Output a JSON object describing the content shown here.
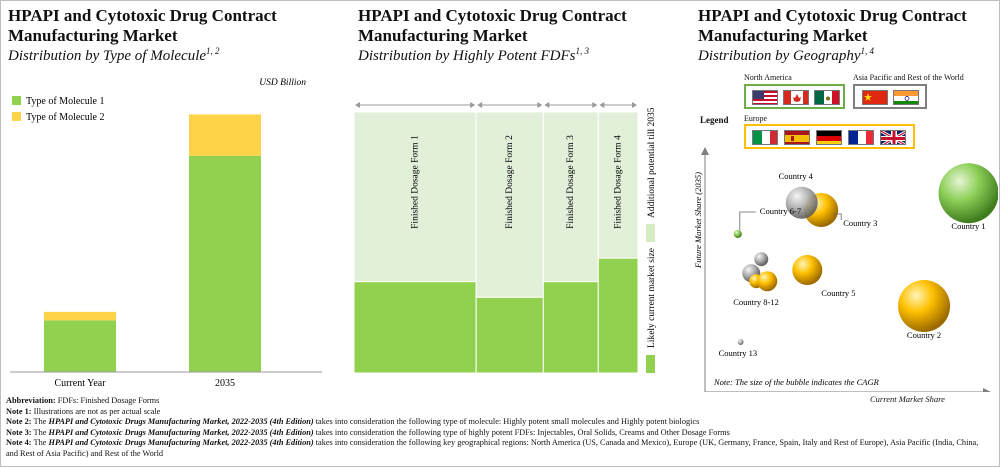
{
  "panels": [
    {
      "title": "HPAPI and Cytotoxic Drug Contract Manufacturing Market",
      "subtitle": "Distribution by Type of Molecule",
      "subtitle_sup": "1, 2"
    },
    {
      "title": "HPAPI and Cytotoxic Drug Contract Manufacturing Market",
      "subtitle": "Distribution by Highly Potent FDFs",
      "subtitle_sup": "1, 3"
    },
    {
      "title": "HPAPI and Cytotoxic Drug Contract Manufacturing Market",
      "subtitle": "Distribution by Geography",
      "subtitle_sup": "1, 4"
    }
  ],
  "chart_data": [
    {
      "type": "bar",
      "stacked": true,
      "unit_label": "USD Billion",
      "categories": [
        "Current Year",
        "2035"
      ],
      "series": [
        {
          "name": "Type of Molecule 1",
          "values": [
            55,
            230
          ],
          "color": "#92d050"
        },
        {
          "name": "Type of Molecule 2",
          "values": [
            9,
            44
          ],
          "color": "#ffd347"
        }
      ],
      "ylim": [
        0,
        300
      ],
      "legend_position": "top-left",
      "grid": false
    },
    {
      "type": "bar",
      "stacked": true,
      "variable_width": true,
      "categories": [
        "Finished Dosage Form 1",
        "Finished Dosage Form 2",
        "Finished Dosage Form 3",
        "Finished Dosage Form 4"
      ],
      "widths": [
        0.4,
        0.22,
        0.18,
        0.13
      ],
      "series": [
        {
          "name": "Likely current market size",
          "values": [
            35,
            29,
            35,
            44
          ],
          "color": "#92d050"
        },
        {
          "name": "Additional potential till 2035",
          "values": [
            65,
            71,
            65,
            56
          ],
          "color": "#e2f0d9"
        }
      ],
      "ylim": [
        0,
        100
      ],
      "legend_position": "right",
      "grid": false
    },
    {
      "type": "scatter",
      "bubble": true,
      "xlabel": "Current Market Share",
      "ylabel": "Future Market Share (2035)",
      "note": "Note: The size of the bubble indicates the CAGR",
      "points": [
        {
          "label": "Country 1",
          "x": 93,
          "y": 82,
          "size": 30,
          "region": "North America",
          "color": "#70ad47"
        },
        {
          "label": "Country 2",
          "x": 77,
          "y": 35,
          "size": 26,
          "region": "Europe",
          "color": "#ffc000"
        },
        {
          "label": "Country 3",
          "x": 40,
          "y": 75,
          "size": 17,
          "region": "Europe",
          "color": "#ffc000"
        },
        {
          "label": "Country 4",
          "x": 33,
          "y": 78,
          "size": 16,
          "region": "Asia Pacific and Rest of the World",
          "color": "#a5a5a5"
        },
        {
          "label": "Country 5",
          "x": 35,
          "y": 50,
          "size": 15,
          "region": "Europe",
          "color": "#ffc000"
        },
        {
          "label": "Country 6-7",
          "x": 10,
          "y": 65,
          "size": 4,
          "region": "North America",
          "color": "#70ad47"
        },
        {
          "label": "Country 8-12",
          "x": 17,
          "y": 47,
          "size": 10,
          "region": "Europe",
          "color": "#ffc000"
        },
        {
          "label": "Country 13",
          "x": 11,
          "y": 20,
          "size": 3,
          "region": "Asia Pacific and Rest of the World",
          "color": "#a5a5a5"
        }
      ],
      "grid": false
    }
  ],
  "legend": {
    "title": "Legend",
    "groups": [
      {
        "name": "North America",
        "flags": [
          "us-flag",
          "canada-flag",
          "mexico-flag"
        ],
        "border": "#70ad47"
      },
      {
        "name": "Asia Pacific and Rest of the World",
        "flags": [
          "china-flag",
          "india-flag"
        ],
        "border": "#7f7f7f"
      },
      {
        "name": "Europe",
        "flags": [
          "italy-flag",
          "spain-flag",
          "germany-flag",
          "france-flag",
          "uk-flag"
        ],
        "border": "#ffc000"
      }
    ]
  },
  "notes": [
    {
      "label": "Abbreviation:",
      "text": " FDFs: Finished Dosage Forms"
    },
    {
      "label": "Note 1:",
      "text": " Illustrations are not as per actual scale"
    },
    {
      "label": "Note 2:",
      "text_before": " The ",
      "title": "HPAPI and Cytotoxic Drugs Manufacturing Market, 2022-2035 (4th Edition)",
      "text": " takes into consideration the following type of molecule: Highly potent small molecules and Highly potent biologics"
    },
    {
      "label": "Note 3:",
      "text_before": " The ",
      "title": "HPAPI and Cytotoxic Drugs Manufacturing Market, 2022-2035 (4th Edition)",
      "text": " takes into consideration the following type of highly potent FDFs: Injectables, Oral Solids, Creams and Other Dosage Forms"
    },
    {
      "label": "Note 4:",
      "text_before": " The ",
      "title": "HPAPI and Cytotoxic Drugs Manufacturing Market, 2022-2035 (4th Edition)",
      "text": " takes into consideration the following key geographical regions: North America (US, Canada and Mexico), Europe (UK, Germany, France, Spain, Italy and Rest of Europe), Asia Pacific (India, China, and Rest of Asia Pacific) and Rest of the World"
    }
  ]
}
